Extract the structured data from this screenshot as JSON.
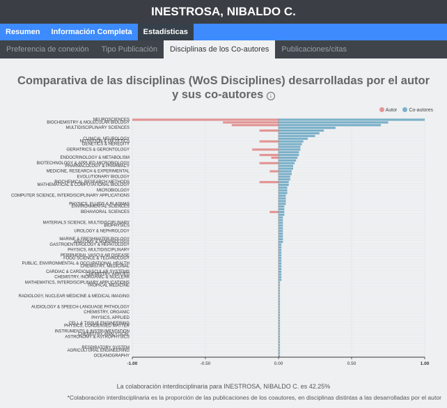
{
  "app": {
    "title": "INESTROSA, NIBALDO C."
  },
  "nav": {
    "tabs": [
      "Resumen",
      "Información Completa",
      "Estadísticas"
    ]
  },
  "subnav": {
    "tabs": [
      "Preferencia de conexión",
      "Tipo Publicación",
      "Disciplinas de los Co-autores",
      "Publicaciones/citas"
    ]
  },
  "chart": {
    "title": "Comparativa de las disciplinas (WoS Disciplines) desarrolladas por el autor y sus co-autores",
    "download_icon": "download-circle-icon",
    "legend": [
      {
        "label": "Autor",
        "color": "#e39494"
      },
      {
        "label": "Co-autores",
        "color": "#7ab0c9"
      }
    ]
  },
  "footer": {
    "line1": "La colaboración interdisciplinaria para INESTROSA, NIBALDO C. es 42.25%",
    "line2": "*Colaboración interdisciplinaria es la proporción de las publicaciones de los coautores, en disciplinas distintas a las desarrolladas por el autor"
  },
  "chart_data": {
    "type": "bar",
    "orientation": "horizontal-diverging",
    "xlim": [
      -1,
      1
    ],
    "xticks": [
      "-1.00",
      "-0.50",
      "0.00",
      "0.50",
      "1.00"
    ],
    "grid": true,
    "legend_position": "top-right",
    "categories": [
      "NEUROSCIENCES",
      "BIOCHEMISTRY & MOLECULAR BIOLOGY",
      "",
      "MULTIDISCIPLINARY SCIENCES",
      "",
      "",
      "",
      "CLINICAL NEUROLOGY",
      "NUTRITION & DIETETICS",
      "GENETICS & HEREDITY",
      "",
      "GERIATRICS & GERONTOLOGY",
      "",
      "",
      "ENDOCRINOLOGY & METABOLISM",
      "",
      "BIOTECHNOLOGY & APPLIED MICROBIOLOGY",
      "PHARMACOLOGY & PHARMACY",
      "",
      "MEDICINE, RESEARCH & EXPERIMENTAL",
      "",
      "EVOLUTIONARY BIOLOGY",
      "",
      "BIOCHEMICAL RESEARCH METHODS",
      "MATHEMATICAL & COMPUTATIONAL BIOLOGY",
      "",
      "MICROBIOLOGY",
      "",
      "COMPUTER SCIENCE, INTERDISCIPLINARY APPLICATIONS",
      "",
      "",
      "PHYSICS, FLUIDS & PLASMAS",
      "ENVIRONMENTAL SCIENCES",
      "",
      "BEHAVIORAL SCIENCES",
      "",
      "",
      "",
      "MATERIALS SCIENCE, MULTIDISCIPLINARY",
      "BIOPHYSICS",
      "",
      "UROLOGY & NEPHROLOGY",
      "",
      "",
      "MARINE & FRESHWATER BIOLOGY",
      "ANATOMY & MORPHOLOGY",
      "GASTROENTEROLOGY & HEPATOLOGY",
      "",
      "PHYSICS, MULTIDISCIPLINARY",
      "",
      "PERIPHERAL VASCULAR DISEASE",
      "FOOD SCIENCE & TECHNOLOGY",
      "",
      "PUBLIC, ENVIRONMENTAL & OCCUPATIONAL HEALTH",
      "CHEMISTRY, MEDICINAL",
      "",
      "CARDIAC & CARDIOVASCULAR SYSTEMS",
      "CHEMISTRY, APPLIED",
      "CHEMISTRY, INORGANIC & NUCLEAR",
      "",
      "MATHEMATICS, INTERDISCIPLINARY APPLICATIONS",
      "TROPICAL MEDICINE",
      "",
      "",
      "",
      "RADIOLOGY, NUCLEAR MEDICINE & MEDICAL IMAGING",
      "",
      "",
      "",
      "AUDIOLOGY & SPEECH-LANGUAGE PATHOLOGY",
      "",
      "CHEMISTRY, ORGANIC",
      "",
      "PHYSICS, APPLIED",
      "",
      "CELL & TISSUE ENGINEERING",
      "PHYSICS, CONDENSED MATTER",
      "",
      "INSTRUMENTS & INSTRUMENTATION",
      "CHEMISTRY, ANALYTICAL",
      "ASTRONOMY & ASTROPHYSICS",
      "",
      "",
      "",
      "RESPIRATORY SYSTEM",
      "AGRICULTURAL ENGINEERING",
      "",
      "OCEANOGRAPHY"
    ],
    "series": [
      {
        "name": "Autor",
        "values": [
          -1.0,
          -0.38,
          -0.32,
          0,
          -0.13,
          0,
          0,
          0,
          -0.13,
          0,
          0,
          -0.18,
          0,
          -0.13,
          -0.05,
          0,
          -0.13,
          0,
          0,
          -0.06,
          0,
          0,
          0,
          -0.13,
          0,
          0,
          0,
          0,
          0,
          0,
          0,
          0,
          0,
          0,
          -0.06,
          0,
          0,
          0,
          0,
          0,
          0,
          0,
          0,
          0,
          0,
          0,
          0,
          0,
          0,
          0,
          0,
          0,
          0,
          0,
          0,
          0,
          0,
          0,
          0,
          0,
          0,
          0,
          0,
          0,
          0,
          0,
          0,
          0,
          0,
          0,
          0,
          0,
          0,
          0,
          0,
          0,
          0,
          0,
          0,
          0,
          0,
          0,
          0,
          0,
          0,
          0,
          0,
          0
        ]
      },
      {
        "name": "Co-autores",
        "values": [
          1.0,
          0.75,
          0.7,
          0.39,
          0.31,
          0.28,
          0.25,
          0.2,
          0.17,
          0.16,
          0.15,
          0.15,
          0.14,
          0.14,
          0.13,
          0.12,
          0.11,
          0.1,
          0.1,
          0.09,
          0.09,
          0.08,
          0.08,
          0.07,
          0.07,
          0.06,
          0.06,
          0.06,
          0.05,
          0.05,
          0.05,
          0.05,
          0.04,
          0.04,
          0.04,
          0.04,
          0.03,
          0.03,
          0.03,
          0.03,
          0.03,
          0.03,
          0.03,
          0.03,
          0.03,
          0.03,
          0.02,
          0.02,
          0.02,
          0.02,
          0.02,
          0.02,
          0.02,
          0.02,
          0.02,
          0.02,
          0.02,
          0.02,
          0.02,
          0.02,
          0.01,
          0.01,
          0.01,
          0.01,
          0.01,
          0.01,
          0.01,
          0.01,
          0.01,
          0.01,
          0.01,
          0.01,
          0.01,
          0.01,
          0.01,
          0.01,
          0.01,
          0.01,
          0.01,
          0.01,
          0.01,
          0.01,
          0.01,
          0.01,
          0.01,
          0.01,
          0.01,
          0.01
        ]
      }
    ]
  }
}
